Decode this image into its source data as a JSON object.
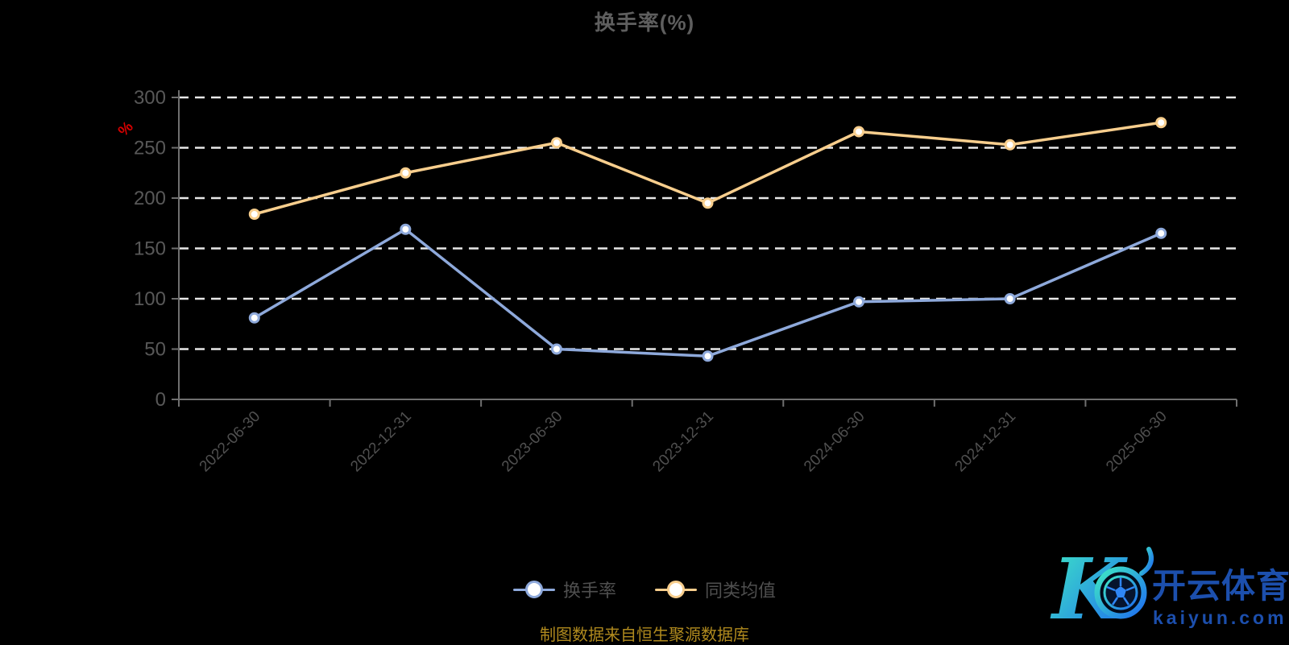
{
  "title": "换手率(%)",
  "chart_data": {
    "type": "line",
    "title": "换手率(%)",
    "categories": [
      "2022-06-30",
      "2022-12-31",
      "2023-06-30",
      "2023-12-31",
      "2024-06-30",
      "2024-12-31",
      "2025-06-30"
    ],
    "series": [
      {
        "name": "换手率",
        "color": "#8EA9DB",
        "values": [
          81,
          169,
          50,
          43,
          97,
          100,
          165
        ]
      },
      {
        "name": "同类均值",
        "color": "#F8CE8D",
        "values": [
          184,
          225,
          255,
          195,
          266,
          253,
          275
        ]
      }
    ],
    "xlabel": "",
    "ylabel": "%",
    "y_axis_unit": "%",
    "ylim": [
      0,
      300
    ],
    "y_ticks": [
      0,
      50,
      100,
      150,
      200,
      250,
      300
    ],
    "grid": "horizontal dashed white lines",
    "legend_position": "bottom",
    "marker": "hollow circle (white fill, series-color ring)"
  },
  "footer": {
    "source_text": "制图数据来自恒生聚源数据库"
  },
  "watermark": {
    "logo_letter": "K",
    "brand": "开云体育",
    "domain": "kaiyun.com"
  },
  "colors": {
    "background": "#000000",
    "title": "#5e5e5e",
    "axis": "#6f6f6f",
    "grid": "#e8e8e8",
    "y_tick_label": "#585858",
    "x_tick_label": "#4f4f4f",
    "legend_text": "#4f4f4f",
    "y_unit": "#d60000",
    "source_text": "#b08a1e",
    "watermark_blue": "#2058c0",
    "logo_gradient_start": "#3fe9c4",
    "logo_gradient_end": "#1e6cf0"
  }
}
